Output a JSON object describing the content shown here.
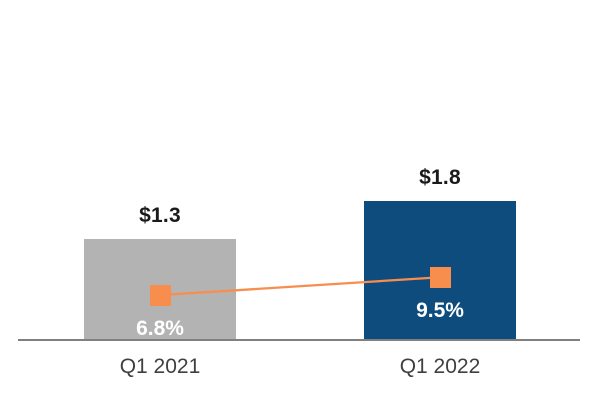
{
  "chart_data": {
    "type": "bar",
    "subtype": "bar-line-combo",
    "categories": [
      "Q1 2021",
      "Q1 2022"
    ],
    "series": [
      {
        "name": "dollar-value-bars",
        "type": "bar",
        "values": [
          1.3,
          1.8
        ],
        "labels": [
          "$1.3",
          "$1.8"
        ],
        "bar_colors": [
          "#B3B3B3",
          "#0E4C7E"
        ]
      },
      {
        "name": "percent-line",
        "type": "line",
        "values": [
          6.8,
          9.5
        ],
        "labels": [
          "6.8%",
          "9.5%"
        ],
        "color": "#F78E4E",
        "marker": "square"
      }
    ],
    "title": "",
    "xlabel": "",
    "ylabel": "",
    "legend_position": "none",
    "gridlines": false,
    "baseline_value": 0,
    "colors": {
      "axis_line": "#808080",
      "background": "#FFFFFF",
      "bar_value_label": "#1A1A1A",
      "inside_percent_label": "#FFFFFF",
      "category_label": "#404040"
    }
  }
}
